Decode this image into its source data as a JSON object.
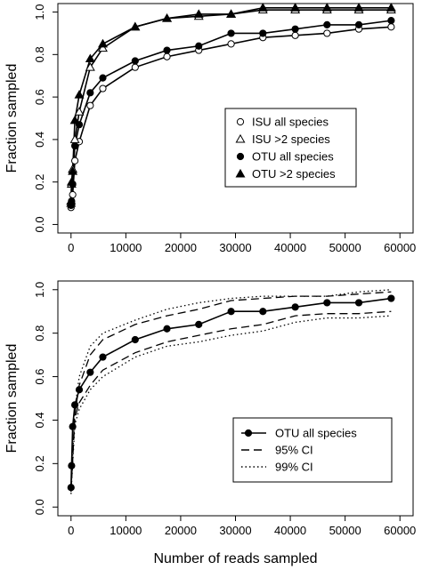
{
  "chart_data": [
    {
      "type": "line",
      "xlabel": "",
      "ylabel": "Fraction sampled",
      "xlim": [
        0,
        60000
      ],
      "ylim": [
        0,
        1.0
      ],
      "x_ticks": [
        0,
        10000,
        20000,
        30000,
        40000,
        50000,
        60000
      ],
      "y_ticks": [
        0.0,
        0.2,
        0.4,
        0.6,
        0.8,
        1.0
      ],
      "x_tick_labels": [
        "0",
        "10000",
        "20000",
        "30000",
        "40000",
        "50000",
        "60000"
      ],
      "y_tick_labels": [
        "0.0",
        "0.2",
        "0.4",
        "0.6",
        "0.8",
        "1.0"
      ],
      "grid": false,
      "legend_position": "right",
      "series": [
        {
          "name": "ISU all species",
          "marker": "open-circle",
          "line": "solid",
          "x": [
            0,
            100,
            300,
            700,
            1500,
            3500,
            5800,
            11700,
            17500,
            23300,
            29200,
            35000,
            40900,
            46700,
            52500,
            58400
          ],
          "y": [
            0.08,
            0.1,
            0.14,
            0.3,
            0.39,
            0.56,
            0.64,
            0.74,
            0.79,
            0.82,
            0.85,
            0.88,
            0.89,
            0.9,
            0.92,
            0.93
          ]
        },
        {
          "name": "ISU >2 species",
          "marker": "open-triangle",
          "line": "solid",
          "x": [
            0,
            100,
            300,
            700,
            1500,
            3500,
            5800,
            11700,
            17500,
            23300,
            29200,
            35000,
            40900,
            46700,
            52500,
            58400
          ],
          "y": [
            0.1,
            0.19,
            0.26,
            0.4,
            0.53,
            0.74,
            0.83,
            0.93,
            0.97,
            0.98,
            0.99,
            1.01,
            1.01,
            1.01,
            1.01,
            1.01
          ]
        },
        {
          "name": "OTU all species",
          "marker": "filled-circle",
          "line": "solid",
          "x": [
            0,
            100,
            300,
            700,
            1500,
            3500,
            5800,
            11700,
            17500,
            23300,
            29200,
            35000,
            40900,
            46700,
            52500,
            58400
          ],
          "y": [
            0.09,
            0.11,
            0.19,
            0.37,
            0.47,
            0.62,
            0.69,
            0.77,
            0.82,
            0.84,
            0.9,
            0.9,
            0.92,
            0.94,
            0.94,
            0.96
          ]
        },
        {
          "name": "OTU >2 species",
          "marker": "filled-triangle",
          "line": "solid",
          "x": [
            0,
            100,
            300,
            700,
            1500,
            3500,
            5800,
            11700,
            17500,
            23300,
            29200,
            35000,
            40900,
            46700,
            52500,
            58400
          ],
          "y": [
            0.11,
            0.2,
            0.25,
            0.49,
            0.61,
            0.78,
            0.85,
            0.93,
            0.97,
            0.99,
            0.99,
            1.02,
            1.02,
            1.02,
            1.02,
            1.02
          ]
        }
      ]
    },
    {
      "type": "line",
      "xlabel": "Number of reads sampled",
      "ylabel": "Fraction sampled",
      "xlim": [
        0,
        60000
      ],
      "ylim": [
        0,
        1.0
      ],
      "x_ticks": [
        0,
        10000,
        20000,
        30000,
        40000,
        50000,
        60000
      ],
      "y_ticks": [
        0.0,
        0.2,
        0.4,
        0.6,
        0.8,
        1.0
      ],
      "x_tick_labels": [
        "0",
        "10000",
        "20000",
        "30000",
        "40000",
        "50000",
        "60000"
      ],
      "y_tick_labels": [
        "0.0",
        "0.2",
        "0.4",
        "0.6",
        "0.8",
        "1.0"
      ],
      "grid": false,
      "legend_position": "bottom-right",
      "series": [
        {
          "name": "OTU all species",
          "marker": "filled-circle",
          "line": "solid",
          "x": [
            0,
            100,
            300,
            700,
            1500,
            3500,
            5800,
            11700,
            17500,
            23300,
            29200,
            35000,
            40900,
            46700,
            52500,
            58400
          ],
          "y": [
            0.09,
            0.19,
            0.37,
            0.47,
            0.54,
            0.62,
            0.69,
            0.77,
            0.82,
            0.84,
            0.9,
            0.9,
            0.92,
            0.94,
            0.94,
            0.96
          ]
        },
        {
          "name": "95% CI",
          "marker": "none",
          "line": "dashed",
          "upper_x": [
            0,
            700,
            1500,
            3500,
            5800,
            11700,
            17500,
            23300,
            29200,
            35000,
            40900,
            46700,
            52500,
            58400
          ],
          "upper_y": [
            0.08,
            0.43,
            0.56,
            0.7,
            0.77,
            0.84,
            0.88,
            0.91,
            0.95,
            0.96,
            0.97,
            0.97,
            0.98,
            0.99
          ],
          "lower_x": [
            0,
            700,
            1500,
            3500,
            5800,
            11700,
            17500,
            23300,
            29200,
            35000,
            40900,
            46700,
            52500,
            58400
          ],
          "lower_y": [
            0.08,
            0.41,
            0.48,
            0.56,
            0.63,
            0.71,
            0.76,
            0.79,
            0.82,
            0.84,
            0.88,
            0.89,
            0.89,
            0.9
          ]
        },
        {
          "name": "99% CI",
          "marker": "none",
          "line": "dotted",
          "upper_x": [
            0,
            700,
            1500,
            3500,
            5800,
            11700,
            17500,
            23300,
            29200,
            35000,
            40900,
            46700,
            52500,
            58400
          ],
          "upper_y": [
            0.07,
            0.45,
            0.6,
            0.74,
            0.8,
            0.86,
            0.91,
            0.94,
            0.96,
            0.97,
            0.97,
            0.97,
            0.99,
            1.0
          ],
          "lower_x": [
            0,
            700,
            1500,
            3500,
            5800,
            11700,
            17500,
            23300,
            29200,
            35000,
            40900,
            46700,
            52500,
            58400
          ],
          "lower_y": [
            0.06,
            0.38,
            0.45,
            0.54,
            0.6,
            0.69,
            0.74,
            0.76,
            0.79,
            0.81,
            0.85,
            0.87,
            0.87,
            0.88
          ]
        }
      ]
    }
  ]
}
